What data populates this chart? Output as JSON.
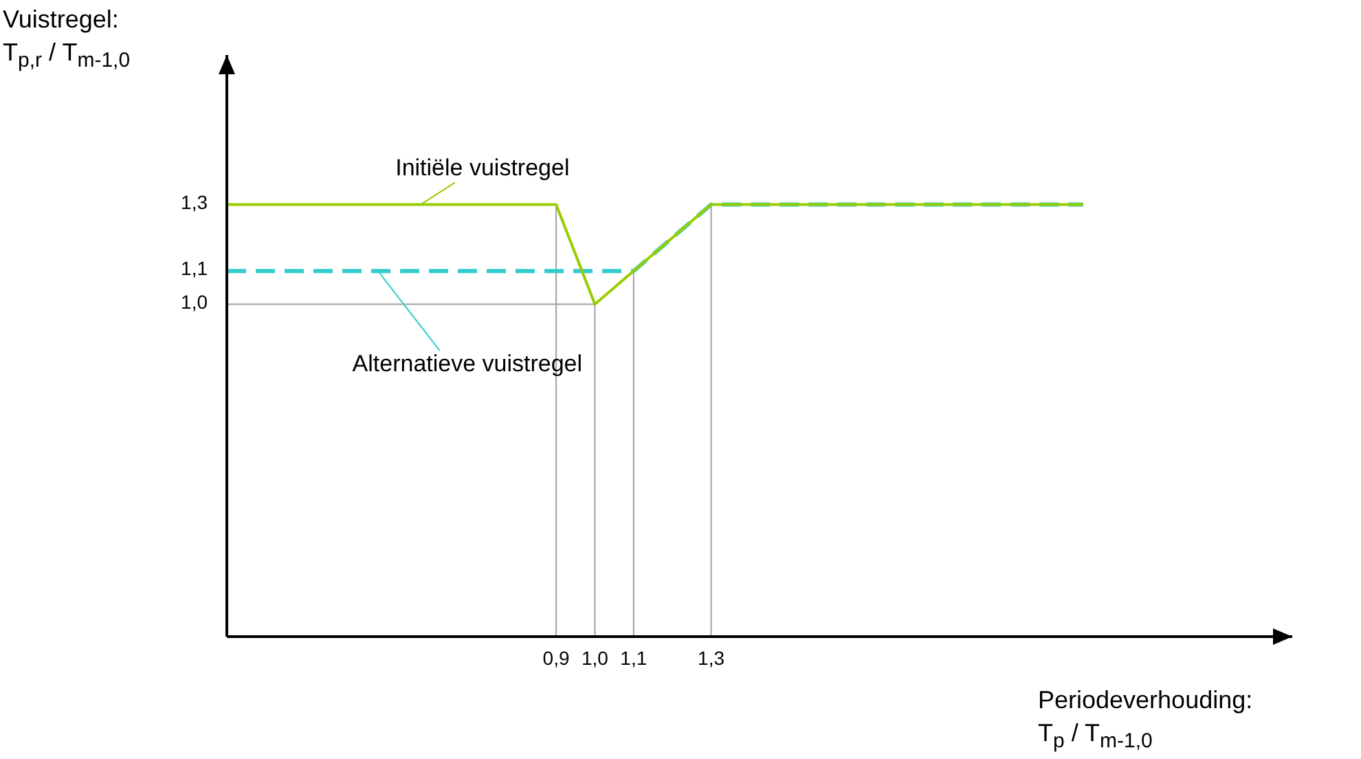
{
  "chart_data": {
    "type": "line",
    "xlabel": "Periodeverhouding:\nT$_{p}$ / T$_{m-1,0}$",
    "ylabel": "Vuistregel:\nT$_{p,r}$ / T$_{m-1,0}$",
    "xlim": [
      0.05,
      2.8
    ],
    "ylim": [
      0,
      1.75
    ],
    "xticks": [
      {
        "value": 0.9,
        "label": "0,9"
      },
      {
        "value": 1.0,
        "label": "1,0"
      },
      {
        "value": 1.1,
        "label": "1,1"
      },
      {
        "value": 1.3,
        "label": "1,3"
      }
    ],
    "yticks": [
      {
        "value": 1.0,
        "label": "1,0"
      },
      {
        "value": 1.1,
        "label": "1,1"
      },
      {
        "value": 1.3,
        "label": "1,3"
      }
    ],
    "grid": false,
    "legend": false,
    "marker": "none",
    "series": [
      {
        "color": "#99cc00",
        "line_style": "solid",
        "x": [
          0.05,
          0.9,
          1.0,
          1.3,
          2.26
        ],
        "values": [
          1.3,
          1.3,
          1.0,
          1.3,
          1.3
        ]
      },
      {
        "color": "#33cccc",
        "line_style": "dashed",
        "x": [
          0.05,
          1.1,
          1.3,
          2.26
        ],
        "values": [
          1.1,
          1.1,
          1.3,
          1.3
        ]
      },
      {
        "type": "line",
        "color": "#a0a0a0",
        "line_style": "solid",
        "x": [
          0.9,
          0.9
        ],
        "values": [
          0,
          1.3
        ]
      },
      {
        "type": "line",
        "color": "#a0a0a0",
        "line_style": "solid",
        "x": [
          1.0,
          1.0
        ],
        "values": [
          0,
          1.0
        ]
      },
      {
        "type": "line",
        "color": "#a0a0a0",
        "line_style": "solid",
        "x": [
          1.1,
          1.1
        ],
        "values": [
          0,
          1.1
        ]
      },
      {
        "type": "line",
        "color": "#a0a0a0",
        "line_style": "solid",
        "x": [
          1.3,
          1.3
        ],
        "values": [
          0,
          1.3
        ]
      },
      {
        "type": "line",
        "color": "#a0a0a0",
        "line_style": "solid",
        "x": [
          0.05,
          1.0
        ],
        "values": [
          1.0,
          1.0
        ]
      }
    ],
    "annotations": [
      {
        "text": "Initiële vuistregel",
        "x": 0.55,
        "y": 1.3
      },
      {
        "text": "Alternatieve vuistregel",
        "x": 0.44,
        "y": 1.1
      }
    ]
  }
}
